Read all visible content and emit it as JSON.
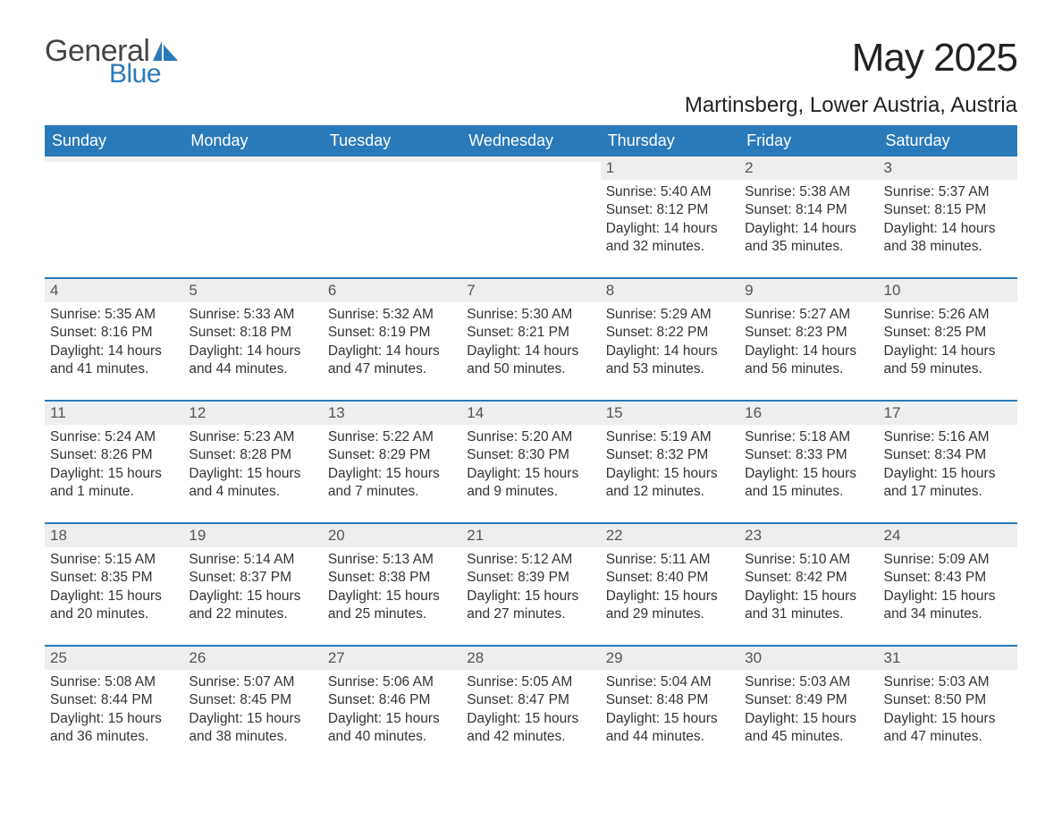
{
  "logo": {
    "text_general": "General",
    "text_blue": "Blue",
    "sail_color": "#2a7ab9"
  },
  "title": "May 2025",
  "location": "Martinsberg, Lower Austria, Austria",
  "colors": {
    "header_bg": "#2a7ab9",
    "header_text": "#ffffff",
    "daynum_bg": "#eceeef",
    "week_divider": "#2a7ab9",
    "body_text": "#333333"
  },
  "day_headers": [
    "Sunday",
    "Monday",
    "Tuesday",
    "Wednesday",
    "Thursday",
    "Friday",
    "Saturday"
  ],
  "weeks": [
    [
      {
        "empty": true
      },
      {
        "empty": true
      },
      {
        "empty": true
      },
      {
        "empty": true
      },
      {
        "n": "1",
        "sunrise": "Sunrise: 5:40 AM",
        "sunset": "Sunset: 8:12 PM",
        "daylight": "Daylight: 14 hours and 32 minutes."
      },
      {
        "n": "2",
        "sunrise": "Sunrise: 5:38 AM",
        "sunset": "Sunset: 8:14 PM",
        "daylight": "Daylight: 14 hours and 35 minutes."
      },
      {
        "n": "3",
        "sunrise": "Sunrise: 5:37 AM",
        "sunset": "Sunset: 8:15 PM",
        "daylight": "Daylight: 14 hours and 38 minutes."
      }
    ],
    [
      {
        "n": "4",
        "sunrise": "Sunrise: 5:35 AM",
        "sunset": "Sunset: 8:16 PM",
        "daylight": "Daylight: 14 hours and 41 minutes."
      },
      {
        "n": "5",
        "sunrise": "Sunrise: 5:33 AM",
        "sunset": "Sunset: 8:18 PM",
        "daylight": "Daylight: 14 hours and 44 minutes."
      },
      {
        "n": "6",
        "sunrise": "Sunrise: 5:32 AM",
        "sunset": "Sunset: 8:19 PM",
        "daylight": "Daylight: 14 hours and 47 minutes."
      },
      {
        "n": "7",
        "sunrise": "Sunrise: 5:30 AM",
        "sunset": "Sunset: 8:21 PM",
        "daylight": "Daylight: 14 hours and 50 minutes."
      },
      {
        "n": "8",
        "sunrise": "Sunrise: 5:29 AM",
        "sunset": "Sunset: 8:22 PM",
        "daylight": "Daylight: 14 hours and 53 minutes."
      },
      {
        "n": "9",
        "sunrise": "Sunrise: 5:27 AM",
        "sunset": "Sunset: 8:23 PM",
        "daylight": "Daylight: 14 hours and 56 minutes."
      },
      {
        "n": "10",
        "sunrise": "Sunrise: 5:26 AM",
        "sunset": "Sunset: 8:25 PM",
        "daylight": "Daylight: 14 hours and 59 minutes."
      }
    ],
    [
      {
        "n": "11",
        "sunrise": "Sunrise: 5:24 AM",
        "sunset": "Sunset: 8:26 PM",
        "daylight": "Daylight: 15 hours and 1 minute."
      },
      {
        "n": "12",
        "sunrise": "Sunrise: 5:23 AM",
        "sunset": "Sunset: 8:28 PM",
        "daylight": "Daylight: 15 hours and 4 minutes."
      },
      {
        "n": "13",
        "sunrise": "Sunrise: 5:22 AM",
        "sunset": "Sunset: 8:29 PM",
        "daylight": "Daylight: 15 hours and 7 minutes."
      },
      {
        "n": "14",
        "sunrise": "Sunrise: 5:20 AM",
        "sunset": "Sunset: 8:30 PM",
        "daylight": "Daylight: 15 hours and 9 minutes."
      },
      {
        "n": "15",
        "sunrise": "Sunrise: 5:19 AM",
        "sunset": "Sunset: 8:32 PM",
        "daylight": "Daylight: 15 hours and 12 minutes."
      },
      {
        "n": "16",
        "sunrise": "Sunrise: 5:18 AM",
        "sunset": "Sunset: 8:33 PM",
        "daylight": "Daylight: 15 hours and 15 minutes."
      },
      {
        "n": "17",
        "sunrise": "Sunrise: 5:16 AM",
        "sunset": "Sunset: 8:34 PM",
        "daylight": "Daylight: 15 hours and 17 minutes."
      }
    ],
    [
      {
        "n": "18",
        "sunrise": "Sunrise: 5:15 AM",
        "sunset": "Sunset: 8:35 PM",
        "daylight": "Daylight: 15 hours and 20 minutes."
      },
      {
        "n": "19",
        "sunrise": "Sunrise: 5:14 AM",
        "sunset": "Sunset: 8:37 PM",
        "daylight": "Daylight: 15 hours and 22 minutes."
      },
      {
        "n": "20",
        "sunrise": "Sunrise: 5:13 AM",
        "sunset": "Sunset: 8:38 PM",
        "daylight": "Daylight: 15 hours and 25 minutes."
      },
      {
        "n": "21",
        "sunrise": "Sunrise: 5:12 AM",
        "sunset": "Sunset: 8:39 PM",
        "daylight": "Daylight: 15 hours and 27 minutes."
      },
      {
        "n": "22",
        "sunrise": "Sunrise: 5:11 AM",
        "sunset": "Sunset: 8:40 PM",
        "daylight": "Daylight: 15 hours and 29 minutes."
      },
      {
        "n": "23",
        "sunrise": "Sunrise: 5:10 AM",
        "sunset": "Sunset: 8:42 PM",
        "daylight": "Daylight: 15 hours and 31 minutes."
      },
      {
        "n": "24",
        "sunrise": "Sunrise: 5:09 AM",
        "sunset": "Sunset: 8:43 PM",
        "daylight": "Daylight: 15 hours and 34 minutes."
      }
    ],
    [
      {
        "n": "25",
        "sunrise": "Sunrise: 5:08 AM",
        "sunset": "Sunset: 8:44 PM",
        "daylight": "Daylight: 15 hours and 36 minutes."
      },
      {
        "n": "26",
        "sunrise": "Sunrise: 5:07 AM",
        "sunset": "Sunset: 8:45 PM",
        "daylight": "Daylight: 15 hours and 38 minutes."
      },
      {
        "n": "27",
        "sunrise": "Sunrise: 5:06 AM",
        "sunset": "Sunset: 8:46 PM",
        "daylight": "Daylight: 15 hours and 40 minutes."
      },
      {
        "n": "28",
        "sunrise": "Sunrise: 5:05 AM",
        "sunset": "Sunset: 8:47 PM",
        "daylight": "Daylight: 15 hours and 42 minutes."
      },
      {
        "n": "29",
        "sunrise": "Sunrise: 5:04 AM",
        "sunset": "Sunset: 8:48 PM",
        "daylight": "Daylight: 15 hours and 44 minutes."
      },
      {
        "n": "30",
        "sunrise": "Sunrise: 5:03 AM",
        "sunset": "Sunset: 8:49 PM",
        "daylight": "Daylight: 15 hours and 45 minutes."
      },
      {
        "n": "31",
        "sunrise": "Sunrise: 5:03 AM",
        "sunset": "Sunset: 8:50 PM",
        "daylight": "Daylight: 15 hours and 47 minutes."
      }
    ]
  ]
}
